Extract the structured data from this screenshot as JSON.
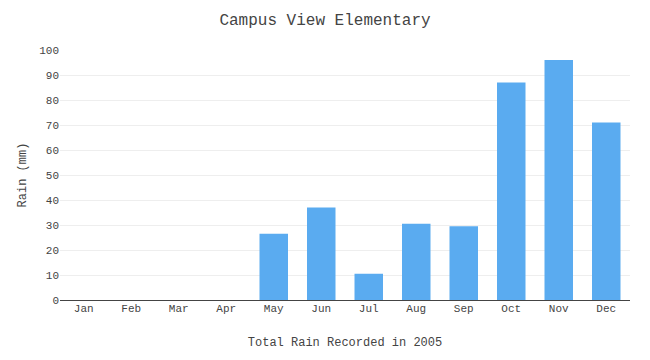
{
  "chart_data": {
    "type": "bar",
    "title": "Campus View Elementary",
    "xlabel": "Total Rain Recorded in 2005",
    "ylabel": "Rain (mm)",
    "categories": [
      "Jan",
      "Feb",
      "Mar",
      "Apr",
      "May",
      "Jun",
      "Jul",
      "Aug",
      "Sep",
      "Oct",
      "Nov",
      "Dec"
    ],
    "values": [
      0,
      0,
      0,
      0,
      26.5,
      37,
      10.5,
      30.5,
      29.5,
      87,
      96,
      71
    ],
    "color": "#5aabf0",
    "ylim": [
      0,
      100
    ],
    "yticks": [
      0,
      10,
      20,
      30,
      40,
      50,
      60,
      70,
      80,
      90,
      100
    ],
    "grid": true
  }
}
